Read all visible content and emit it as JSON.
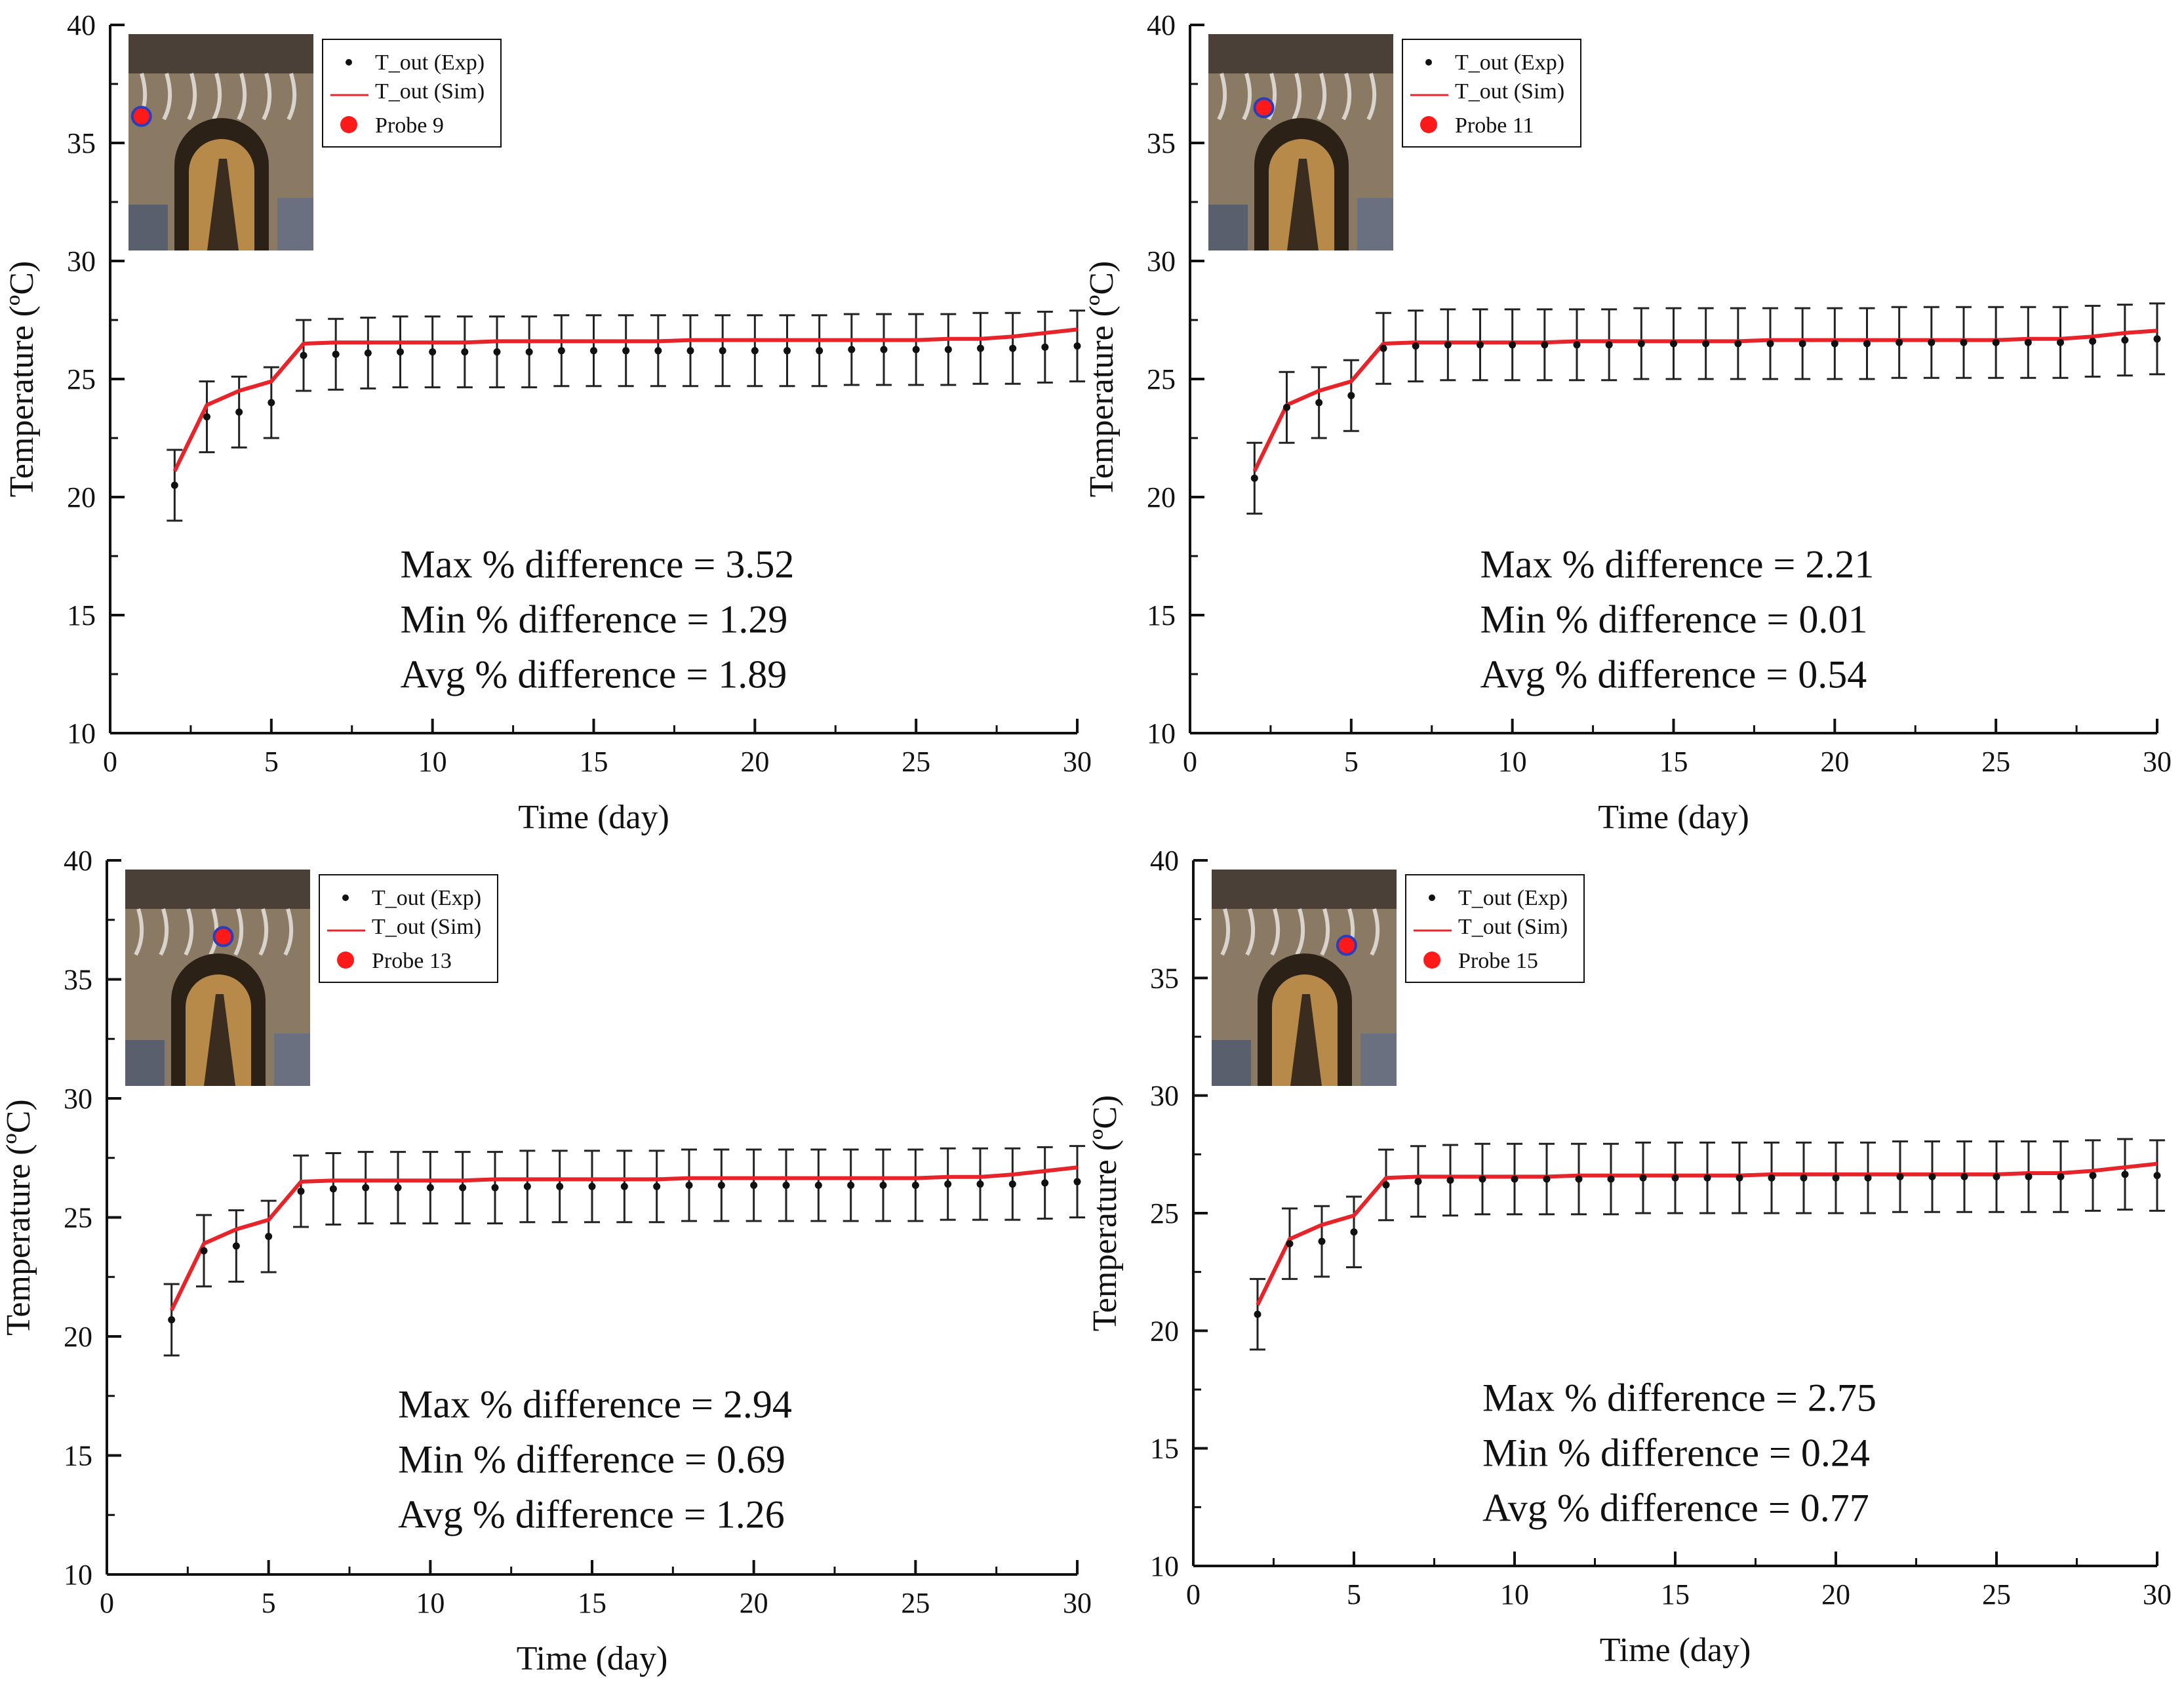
{
  "colors": {
    "sim_line": "#e8242b",
    "exp_point": "#111111",
    "error_bar": "#222222",
    "probe_marker": "#ff1a1a",
    "probe_marker_ring": "#2a3dbb",
    "axis": "#111111"
  },
  "chart_data": [
    {
      "type": "line",
      "xlabel": "Time (day)",
      "ylabel": "Temperature (ºC)",
      "xlim": [
        0,
        30
      ],
      "ylim": [
        10,
        40
      ],
      "x_ticks": [
        "0",
        "5",
        "10",
        "15",
        "20",
        "25",
        "30"
      ],
      "y_ticks": [
        "10",
        "15",
        "20",
        "25",
        "30",
        "35",
        "40"
      ],
      "grid": false,
      "legend": {
        "placement": "top-left",
        "items": [
          "T_out (Exp)",
          "T_out (Sim)",
          "Probe 9"
        ]
      },
      "thumbnail": {
        "probe_position": [
          0.07,
          0.38
        ]
      },
      "stats": [
        "Max % difference = 3.52",
        "Min % difference = 1.29",
        "Avg % difference = 1.89"
      ],
      "series": [
        {
          "name": "T_out (Exp)",
          "kind": "scatter-errorbar",
          "x": [
            2,
            3,
            4,
            5,
            6,
            7,
            8,
            9,
            10,
            11,
            12,
            13,
            14,
            15,
            16,
            17,
            18,
            19,
            20,
            21,
            22,
            23,
            24,
            25,
            26,
            27,
            28,
            29,
            30
          ],
          "y": [
            20.5,
            23.4,
            23.6,
            24.0,
            26.0,
            26.05,
            26.1,
            26.15,
            26.15,
            26.15,
            26.15,
            26.15,
            26.2,
            26.2,
            26.2,
            26.2,
            26.2,
            26.2,
            26.2,
            26.2,
            26.2,
            26.25,
            26.25,
            26.25,
            26.25,
            26.3,
            26.3,
            26.35,
            26.4
          ],
          "error": 1.5
        },
        {
          "name": "T_out (Sim)",
          "kind": "line",
          "x": [
            2,
            3,
            4,
            5,
            6,
            7,
            8,
            9,
            10,
            11,
            12,
            13,
            14,
            15,
            16,
            17,
            18,
            19,
            20,
            21,
            22,
            23,
            24,
            25,
            26,
            27,
            28,
            29,
            30
          ],
          "y": [
            21.1,
            23.9,
            24.5,
            24.9,
            26.5,
            26.55,
            26.55,
            26.55,
            26.55,
            26.55,
            26.6,
            26.6,
            26.6,
            26.6,
            26.6,
            26.6,
            26.65,
            26.65,
            26.65,
            26.65,
            26.65,
            26.65,
            26.65,
            26.65,
            26.7,
            26.7,
            26.8,
            26.95,
            27.1
          ]
        }
      ]
    },
    {
      "type": "line",
      "xlabel": "Time (day)",
      "ylabel": "Temperature (ºC)",
      "xlim": [
        0,
        30
      ],
      "ylim": [
        10,
        40
      ],
      "x_ticks": [
        "0",
        "5",
        "10",
        "15",
        "20",
        "25",
        "30"
      ],
      "y_ticks": [
        "10",
        "15",
        "20",
        "25",
        "30",
        "35",
        "40"
      ],
      "grid": false,
      "legend": {
        "placement": "top-left",
        "items": [
          "T_out (Exp)",
          "T_out (Sim)",
          "Probe 11"
        ]
      },
      "thumbnail": {
        "probe_position": [
          0.3,
          0.34
        ]
      },
      "stats": [
        "Max % difference = 2.21",
        "Min % difference = 0.01",
        "Avg % difference = 0.54"
      ],
      "series": [
        {
          "name": "T_out (Exp)",
          "kind": "scatter-errorbar",
          "x": [
            2,
            3,
            4,
            5,
            6,
            7,
            8,
            9,
            10,
            11,
            12,
            13,
            14,
            15,
            16,
            17,
            18,
            19,
            20,
            21,
            22,
            23,
            24,
            25,
            26,
            27,
            28,
            29,
            30
          ],
          "y": [
            20.8,
            23.8,
            24.0,
            24.3,
            26.3,
            26.4,
            26.45,
            26.45,
            26.45,
            26.45,
            26.45,
            26.45,
            26.5,
            26.5,
            26.5,
            26.5,
            26.5,
            26.5,
            26.5,
            26.5,
            26.55,
            26.55,
            26.55,
            26.55,
            26.55,
            26.55,
            26.6,
            26.65,
            26.7
          ],
          "error": 1.5
        },
        {
          "name": "T_out (Sim)",
          "kind": "line",
          "x": [
            2,
            3,
            4,
            5,
            6,
            7,
            8,
            9,
            10,
            11,
            12,
            13,
            14,
            15,
            16,
            17,
            18,
            19,
            20,
            21,
            22,
            23,
            24,
            25,
            26,
            27,
            28,
            29,
            30
          ],
          "y": [
            21.1,
            23.9,
            24.5,
            24.9,
            26.5,
            26.55,
            26.55,
            26.55,
            26.55,
            26.55,
            26.6,
            26.6,
            26.6,
            26.6,
            26.6,
            26.6,
            26.65,
            26.65,
            26.65,
            26.65,
            26.65,
            26.65,
            26.65,
            26.65,
            26.7,
            26.7,
            26.8,
            26.95,
            27.05
          ]
        }
      ]
    },
    {
      "type": "line",
      "xlabel": "Time (day)",
      "ylabel": "Temperature (ºC)",
      "xlim": [
        0,
        30
      ],
      "ylim": [
        10,
        40
      ],
      "x_ticks": [
        "0",
        "5",
        "10",
        "15",
        "20",
        "25",
        "30"
      ],
      "y_ticks": [
        "10",
        "15",
        "20",
        "25",
        "30",
        "35",
        "40"
      ],
      "grid": false,
      "legend": {
        "placement": "top-left",
        "items": [
          "T_out (Exp)",
          "T_out (Sim)",
          "Probe 13"
        ]
      },
      "thumbnail": {
        "probe_position": [
          0.53,
          0.31
        ]
      },
      "stats": [
        "Max % difference = 2.94",
        "Min % difference = 0.69",
        "Avg % difference = 1.26"
      ],
      "series": [
        {
          "name": "T_out (Exp)",
          "kind": "scatter-errorbar",
          "x": [
            2,
            3,
            4,
            5,
            6,
            7,
            8,
            9,
            10,
            11,
            12,
            13,
            14,
            15,
            16,
            17,
            18,
            19,
            20,
            21,
            22,
            23,
            24,
            25,
            26,
            27,
            28,
            29,
            30
          ],
          "y": [
            20.7,
            23.6,
            23.8,
            24.2,
            26.1,
            26.2,
            26.25,
            26.25,
            26.25,
            26.25,
            26.25,
            26.3,
            26.3,
            26.3,
            26.3,
            26.3,
            26.35,
            26.35,
            26.35,
            26.35,
            26.35,
            26.35,
            26.35,
            26.35,
            26.4,
            26.4,
            26.4,
            26.45,
            26.5
          ],
          "error": 1.5
        },
        {
          "name": "T_out (Sim)",
          "kind": "line",
          "x": [
            2,
            3,
            4,
            5,
            6,
            7,
            8,
            9,
            10,
            11,
            12,
            13,
            14,
            15,
            16,
            17,
            18,
            19,
            20,
            21,
            22,
            23,
            24,
            25,
            26,
            27,
            28,
            29,
            30
          ],
          "y": [
            21.1,
            23.9,
            24.5,
            24.9,
            26.5,
            26.55,
            26.55,
            26.55,
            26.55,
            26.55,
            26.6,
            26.6,
            26.6,
            26.6,
            26.6,
            26.6,
            26.65,
            26.65,
            26.65,
            26.65,
            26.65,
            26.65,
            26.65,
            26.65,
            26.7,
            26.7,
            26.8,
            26.95,
            27.1
          ]
        }
      ]
    },
    {
      "type": "line",
      "xlabel": "Time (day)",
      "ylabel": "Temperature (ºC)",
      "xlim": [
        0,
        30
      ],
      "ylim": [
        10,
        40
      ],
      "x_ticks": [
        "0",
        "5",
        "10",
        "15",
        "20",
        "25",
        "30"
      ],
      "y_ticks": [
        "10",
        "15",
        "20",
        "25",
        "30",
        "35",
        "40"
      ],
      "grid": false,
      "legend": {
        "placement": "top-left",
        "items": [
          "T_out (Exp)",
          "T_out (Sim)",
          "Probe 15"
        ]
      },
      "thumbnail": {
        "probe_position": [
          0.73,
          0.35
        ]
      },
      "stats": [
        "Max % difference = 2.75",
        "Min % difference = 0.24",
        "Avg % difference = 0.77"
      ],
      "series": [
        {
          "name": "T_out (Exp)",
          "kind": "scatter-errorbar",
          "x": [
            2,
            3,
            4,
            5,
            6,
            7,
            8,
            9,
            10,
            11,
            12,
            13,
            14,
            15,
            16,
            17,
            18,
            19,
            20,
            21,
            22,
            23,
            24,
            25,
            26,
            27,
            28,
            29,
            30
          ],
          "y": [
            20.7,
            23.7,
            23.8,
            24.2,
            26.2,
            26.35,
            26.4,
            26.45,
            26.45,
            26.45,
            26.45,
            26.45,
            26.5,
            26.5,
            26.5,
            26.5,
            26.5,
            26.5,
            26.5,
            26.5,
            26.55,
            26.55,
            26.55,
            26.55,
            26.55,
            26.55,
            26.6,
            26.65,
            26.6
          ],
          "error": 1.5
        },
        {
          "name": "T_out (Sim)",
          "kind": "line",
          "x": [
            2,
            3,
            4,
            5,
            6,
            7,
            8,
            9,
            10,
            11,
            12,
            13,
            14,
            15,
            16,
            17,
            18,
            19,
            20,
            21,
            22,
            23,
            24,
            25,
            26,
            27,
            28,
            29,
            30
          ],
          "y": [
            21.1,
            23.9,
            24.5,
            24.9,
            26.5,
            26.55,
            26.55,
            26.55,
            26.55,
            26.55,
            26.6,
            26.6,
            26.6,
            26.6,
            26.6,
            26.6,
            26.65,
            26.65,
            26.65,
            26.65,
            26.65,
            26.65,
            26.65,
            26.65,
            26.7,
            26.7,
            26.8,
            26.95,
            27.1
          ]
        }
      ]
    }
  ]
}
